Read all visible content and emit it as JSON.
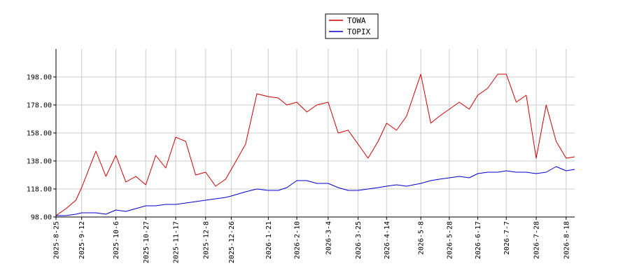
{
  "chart_data": {
    "type": "line",
    "ylim": [
      98,
      218
    ],
    "yticks": [
      "98.00",
      "118.00",
      "138.00",
      "158.00",
      "178.00",
      "198.00"
    ],
    "xticks": [
      "2025-8-25",
      "2025-9-12",
      "2025-10-6",
      "2025-10-27",
      "2025-11-17",
      "2025-12-8",
      "2025-12-26",
      "2026-1-21",
      "2026-2-10",
      "2026-3-4",
      "2026-3-25",
      "2026-4-14",
      "2026-5-8",
      "2026-5-28",
      "2026-6-17",
      "2026-7-7",
      "2026-7-28",
      "2026-8-18"
    ],
    "grid": true,
    "legend": "top-center",
    "x": [
      "2025-8-25",
      "2025-9-1",
      "2025-9-8",
      "2025-9-12",
      "2025-9-22",
      "2025-9-29",
      "2025-10-6",
      "2025-10-13",
      "2025-10-20",
      "2025-10-27",
      "2025-11-3",
      "2025-11-10",
      "2025-11-17",
      "2025-11-24",
      "2025-12-1",
      "2025-12-8",
      "2025-12-15",
      "2025-12-22",
      "2025-12-26",
      "2026-1-5",
      "2026-1-13",
      "2026-1-21",
      "2026-1-28",
      "2026-2-3",
      "2026-2-10",
      "2026-2-17",
      "2026-2-24",
      "2026-3-4",
      "2026-3-11",
      "2026-3-18",
      "2026-3-25",
      "2026-4-1",
      "2026-4-8",
      "2026-4-14",
      "2026-4-21",
      "2026-4-28",
      "2026-5-8",
      "2026-5-15",
      "2026-5-21",
      "2026-5-28",
      "2026-6-4",
      "2026-6-11",
      "2026-6-17",
      "2026-6-24",
      "2026-7-1",
      "2026-7-7",
      "2026-7-14",
      "2026-7-21",
      "2026-7-28",
      "2026-8-4",
      "2026-8-11",
      "2026-8-18",
      "2026-8-24"
    ],
    "series": [
      {
        "name": "TOWA",
        "color": "#cc0000",
        "values": [
          99,
          104,
          110,
          119,
          145,
          127,
          142,
          123,
          127,
          121,
          142,
          133,
          155,
          152,
          128,
          130,
          120,
          125,
          132,
          150,
          186,
          184,
          183,
          178,
          180,
          173,
          178,
          180,
          158,
          160,
          150,
          140,
          152,
          165,
          160,
          170,
          200,
          165,
          170,
          175,
          180,
          175,
          185,
          190,
          200,
          200,
          180,
          185,
          140,
          178,
          152,
          140,
          141
        ]
      },
      {
        "name": "TOPIX",
        "color": "#0000cc",
        "values": [
          99,
          99,
          100,
          101,
          101,
          100,
          103,
          102,
          104,
          106,
          106,
          107,
          107,
          108,
          109,
          110,
          111,
          112,
          113,
          116,
          118,
          117,
          117,
          119,
          124,
          124,
          122,
          122,
          119,
          117,
          117,
          118,
          119,
          120,
          121,
          120,
          122,
          124,
          125,
          126,
          127,
          126,
          129,
          130,
          130,
          131,
          130,
          130,
          129,
          130,
          134,
          131,
          132
        ]
      }
    ]
  }
}
